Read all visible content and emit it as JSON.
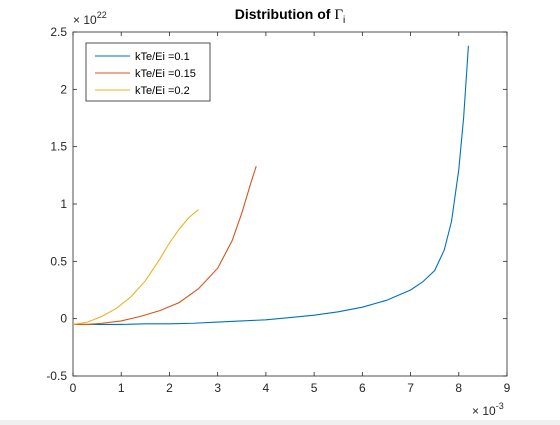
{
  "chart_data": {
    "type": "line",
    "title": {
      "main": "Distribution of ",
      "greek": "Γ",
      "subscript": "i"
    },
    "xlabel": "",
    "ylabel": "",
    "x_scale_label": {
      "base": "× 10",
      "exp": "-3"
    },
    "y_scale_label": {
      "base": "× 10",
      "exp": "22"
    },
    "x_scale_factor": 0.001,
    "y_scale_factor": 1e+22,
    "xlim": [
      0,
      9
    ],
    "ylim": [
      -0.5,
      2.5
    ],
    "xticks": [
      0,
      1,
      2,
      3,
      4,
      5,
      6,
      7,
      8,
      9
    ],
    "yticks": [
      -0.5,
      0,
      0.5,
      1,
      1.5,
      2,
      2.5
    ],
    "ytick_labels": [
      "-0.5",
      "0",
      "0.5",
      "1",
      "1.5",
      "2",
      "2.5"
    ],
    "grid": false,
    "legend_position": "top-left",
    "series": [
      {
        "name": "kTe/Ei =0.1",
        "color": "#0072BD",
        "x": [
          0,
          0.5,
          1,
          1.5,
          2,
          2.5,
          3,
          3.5,
          4,
          4.5,
          5,
          5.5,
          6,
          6.5,
          7,
          7.25,
          7.5,
          7.7,
          7.85,
          8.0,
          8.1,
          8.2
        ],
        "y": [
          -0.05,
          -0.05,
          -0.05,
          -0.045,
          -0.045,
          -0.04,
          -0.03,
          -0.02,
          -0.01,
          0.01,
          0.03,
          0.06,
          0.1,
          0.16,
          0.25,
          0.32,
          0.42,
          0.6,
          0.85,
          1.3,
          1.75,
          2.38
        ]
      },
      {
        "name": "kTe/Ei =0.15",
        "color": "#D95319",
        "x": [
          0,
          0.3,
          0.6,
          1,
          1.4,
          1.8,
          2.2,
          2.6,
          3.0,
          3.3,
          3.5,
          3.7,
          3.8
        ],
        "y": [
          -0.05,
          -0.05,
          -0.04,
          -0.02,
          0.02,
          0.07,
          0.14,
          0.26,
          0.44,
          0.68,
          0.92,
          1.2,
          1.33
        ]
      },
      {
        "name": "kTe/Ei =0.2",
        "color": "#EDB120",
        "x": [
          0,
          0.3,
          0.6,
          0.9,
          1.2,
          1.5,
          1.8,
          2.0,
          2.2,
          2.4,
          2.6
        ],
        "y": [
          -0.05,
          -0.03,
          0.02,
          0.09,
          0.19,
          0.33,
          0.52,
          0.66,
          0.78,
          0.88,
          0.95
        ]
      }
    ]
  }
}
